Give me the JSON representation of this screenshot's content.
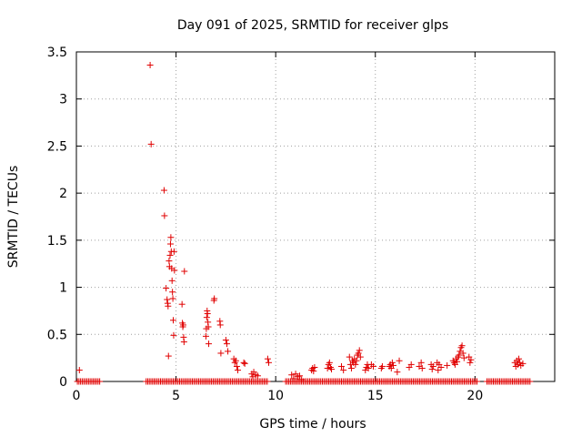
{
  "chart_data": {
    "type": "scatter",
    "title": "Day 091 of 2025, SRMTID for receiver glps",
    "xlabel": "GPS time / hours",
    "ylabel": "SRMTID / TECUs",
    "xlim": [
      0,
      24
    ],
    "ylim": [
      0,
      3.5
    ],
    "xticks": [
      "0",
      "5",
      "10",
      "15",
      "20"
    ],
    "xtick_values": [
      0,
      5,
      10,
      15,
      20
    ],
    "yticks": [
      "0",
      "0.5",
      "1",
      "1.5",
      "2",
      "2.5",
      "3",
      "3.5"
    ],
    "ytick_values": [
      0,
      0.5,
      1,
      1.5,
      2,
      2.5,
      3,
      3.5
    ],
    "grid": true,
    "marker": "+",
    "marker_color": "#e00000",
    "zero_segments": [
      [
        0.05,
        1.2
      ],
      [
        3.5,
        9.6
      ],
      [
        10.5,
        20.1
      ],
      [
        20.6,
        22.8
      ]
    ],
    "zero_step": 0.08,
    "series": [
      {
        "name": "SRMTID",
        "points": [
          [
            0.15,
            0.12
          ],
          [
            3.7,
            3.36
          ],
          [
            3.75,
            2.52
          ],
          [
            4.4,
            2.03
          ],
          [
            4.42,
            1.76
          ],
          [
            4.5,
            0.99
          ],
          [
            4.55,
            0.87
          ],
          [
            4.58,
            0.83
          ],
          [
            4.6,
            0.8
          ],
          [
            4.62,
            0.27
          ],
          [
            4.65,
            1.28
          ],
          [
            4.67,
            1.22
          ],
          [
            4.7,
            1.34
          ],
          [
            4.72,
            1.46
          ],
          [
            4.74,
            1.53
          ],
          [
            4.76,
            1.38
          ],
          [
            4.78,
            1.2
          ],
          [
            4.8,
            1.07
          ],
          [
            4.82,
            0.95
          ],
          [
            4.84,
            0.88
          ],
          [
            4.86,
            0.65
          ],
          [
            4.88,
            0.49
          ],
          [
            4.9,
            1.38
          ],
          [
            4.92,
            1.18
          ],
          [
            5.3,
            0.82
          ],
          [
            5.32,
            0.62
          ],
          [
            5.34,
            0.58
          ],
          [
            5.36,
            0.6
          ],
          [
            5.38,
            0.47
          ],
          [
            5.4,
            0.42
          ],
          [
            5.42,
            1.17
          ],
          [
            6.5,
            0.48
          ],
          [
            6.52,
            0.56
          ],
          [
            6.54,
            0.68
          ],
          [
            6.56,
            0.75
          ],
          [
            6.58,
            0.72
          ],
          [
            6.6,
            0.63
          ],
          [
            6.62,
            0.58
          ],
          [
            6.64,
            0.4
          ],
          [
            6.9,
            0.86
          ],
          [
            6.92,
            0.88
          ],
          [
            7.2,
            0.64
          ],
          [
            7.22,
            0.6
          ],
          [
            7.25,
            0.3
          ],
          [
            7.5,
            0.44
          ],
          [
            7.55,
            0.4
          ],
          [
            7.6,
            0.32
          ],
          [
            7.9,
            0.24
          ],
          [
            7.95,
            0.2
          ],
          [
            8.0,
            0.22
          ],
          [
            8.05,
            0.16
          ],
          [
            8.1,
            0.12
          ],
          [
            8.4,
            0.2
          ],
          [
            8.45,
            0.19
          ],
          [
            8.8,
            0.08
          ],
          [
            8.85,
            0.05
          ],
          [
            8.9,
            0.1
          ],
          [
            9.0,
            0.07
          ],
          [
            9.1,
            0.06
          ],
          [
            9.6,
            0.24
          ],
          [
            9.65,
            0.2
          ],
          [
            10.8,
            0.07
          ],
          [
            10.9,
            0.03
          ],
          [
            11.0,
            0.08
          ],
          [
            11.1,
            0.05
          ],
          [
            11.2,
            0.06
          ],
          [
            11.3,
            0.02
          ],
          [
            11.8,
            0.12
          ],
          [
            11.85,
            0.14
          ],
          [
            11.9,
            0.11
          ],
          [
            11.95,
            0.15
          ],
          [
            12.6,
            0.14
          ],
          [
            12.65,
            0.18
          ],
          [
            12.7,
            0.2
          ],
          [
            12.75,
            0.15
          ],
          [
            12.8,
            0.13
          ],
          [
            13.3,
            0.16
          ],
          [
            13.4,
            0.12
          ],
          [
            13.7,
            0.26
          ],
          [
            13.75,
            0.18
          ],
          [
            13.8,
            0.14
          ],
          [
            13.85,
            0.22
          ],
          [
            13.9,
            0.2
          ],
          [
            13.95,
            0.24
          ],
          [
            14.0,
            0.18
          ],
          [
            14.05,
            0.22
          ],
          [
            14.1,
            0.28
          ],
          [
            14.15,
            0.3
          ],
          [
            14.2,
            0.33
          ],
          [
            14.25,
            0.26
          ],
          [
            14.5,
            0.12
          ],
          [
            14.55,
            0.15
          ],
          [
            14.6,
            0.18
          ],
          [
            14.65,
            0.14
          ],
          [
            14.8,
            0.18
          ],
          [
            14.9,
            0.16
          ],
          [
            15.3,
            0.14
          ],
          [
            15.35,
            0.16
          ],
          [
            15.7,
            0.16
          ],
          [
            15.75,
            0.18
          ],
          [
            15.8,
            0.14
          ],
          [
            15.85,
            0.2
          ],
          [
            15.9,
            0.17
          ],
          [
            16.1,
            0.1
          ],
          [
            16.2,
            0.22
          ],
          [
            16.7,
            0.15
          ],
          [
            16.8,
            0.18
          ],
          [
            17.2,
            0.16
          ],
          [
            17.3,
            0.2
          ],
          [
            17.35,
            0.14
          ],
          [
            17.8,
            0.18
          ],
          [
            17.85,
            0.13
          ],
          [
            17.9,
            0.16
          ],
          [
            18.1,
            0.2
          ],
          [
            18.15,
            0.12
          ],
          [
            18.2,
            0.18
          ],
          [
            18.3,
            0.15
          ],
          [
            18.6,
            0.17
          ],
          [
            18.9,
            0.22
          ],
          [
            18.95,
            0.2
          ],
          [
            19.0,
            0.18
          ],
          [
            19.05,
            0.24
          ],
          [
            19.1,
            0.21
          ],
          [
            19.15,
            0.26
          ],
          [
            19.2,
            0.28
          ],
          [
            19.25,
            0.32
          ],
          [
            19.3,
            0.36
          ],
          [
            19.35,
            0.38
          ],
          [
            19.4,
            0.3
          ],
          [
            19.45,
            0.25
          ],
          [
            19.7,
            0.26
          ],
          [
            19.75,
            0.2
          ],
          [
            19.8,
            0.23
          ],
          [
            22.0,
            0.2
          ],
          [
            22.05,
            0.16
          ],
          [
            22.1,
            0.22
          ],
          [
            22.15,
            0.18
          ],
          [
            22.2,
            0.24
          ],
          [
            22.25,
            0.2
          ],
          [
            22.3,
            0.17
          ],
          [
            22.4,
            0.19
          ]
        ]
      }
    ]
  }
}
